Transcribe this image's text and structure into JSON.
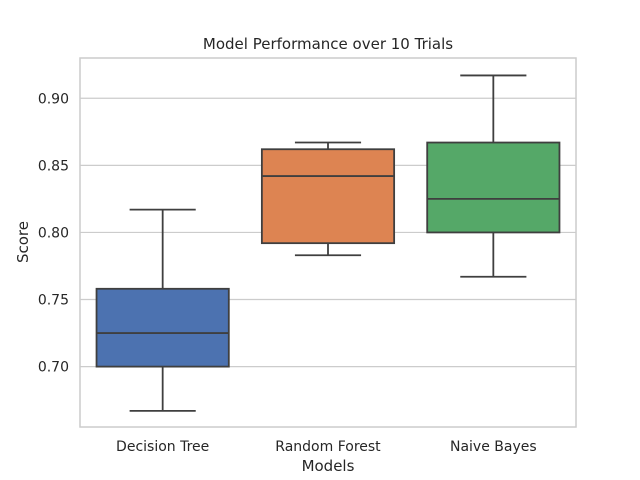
{
  "chart_data": {
    "type": "box",
    "title": "Model Performance over 10 Trials",
    "xlabel": "Models",
    "ylabel": "Score",
    "ylim": [
      0.655,
      0.93
    ],
    "yticks": [
      0.7,
      0.75,
      0.8,
      0.85,
      0.9
    ],
    "ytick_labels": [
      "0.70",
      "0.75",
      "0.80",
      "0.85",
      "0.90"
    ],
    "grid": "horizontal",
    "categories": [
      "Decision Tree",
      "Random Forest",
      "Naive Bayes"
    ],
    "series": [
      {
        "category": "Decision Tree",
        "whisker_low": 0.667,
        "q1": 0.7,
        "median": 0.725,
        "q3": 0.758,
        "whisker_high": 0.817,
        "color": "#4c72b0"
      },
      {
        "category": "Random Forest",
        "whisker_low": 0.783,
        "q1": 0.792,
        "median": 0.842,
        "q3": 0.862,
        "whisker_high": 0.867,
        "color": "#dd8452"
      },
      {
        "category": "Naive Bayes",
        "whisker_low": 0.767,
        "q1": 0.8,
        "median": 0.825,
        "q3": 0.867,
        "whisker_high": 0.917,
        "color": "#55a868"
      }
    ]
  }
}
